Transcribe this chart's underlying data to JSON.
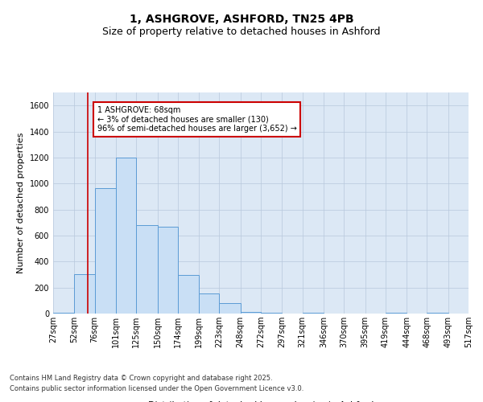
{
  "title1": "1, ASHGROVE, ASHFORD, TN25 4PB",
  "title2": "Size of property relative to detached houses in Ashford",
  "xlabel": "Distribution of detached houses by size in Ashford",
  "ylabel": "Number of detached properties",
  "footer1": "Contains HM Land Registry data © Crown copyright and database right 2025.",
  "footer2": "Contains public sector information licensed under the Open Government Licence v3.0.",
  "bin_edges": [
    27,
    52,
    76,
    101,
    125,
    150,
    174,
    199,
    223,
    248,
    272,
    297,
    321,
    346,
    370,
    395,
    419,
    444,
    468,
    493,
    517
  ],
  "bar_heights": [
    5,
    305,
    965,
    1200,
    680,
    670,
    295,
    155,
    80,
    15,
    5,
    0,
    5,
    0,
    0,
    0,
    5,
    0,
    5,
    0
  ],
  "bar_color": "#c9dff5",
  "bar_edge_color": "#5b9bd5",
  "bg_color": "#dce8f5",
  "red_line_x": 68,
  "annotation_text": "1 ASHGROVE: 68sqm\n← 3% of detached houses are smaller (130)\n96% of semi-detached houses are larger (3,652) →",
  "annotation_box_color": "#cc0000",
  "ylim": [
    0,
    1700
  ],
  "yticks": [
    0,
    200,
    400,
    600,
    800,
    1000,
    1200,
    1400,
    1600
  ],
  "grid_color": "#b8c8dc",
  "title1_fontsize": 10,
  "title2_fontsize": 9,
  "axis_label_fontsize": 8,
  "tick_fontsize": 7,
  "annotation_fontsize": 7,
  "footer_fontsize": 6
}
